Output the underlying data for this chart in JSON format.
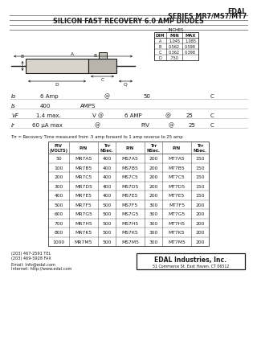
{
  "title_company": "EDAL",
  "title_series": "SERIES MR7/MS7/MT7",
  "title_product": "SILICON FAST RECOVERY 6.0 AMP DIODES",
  "dim_table_label": "INCHES",
  "dim_table_headers": [
    "DIM",
    "MIN",
    "MAX"
  ],
  "dim_table_rows": [
    [
      "A",
      "1.045",
      "1.085"
    ],
    [
      "B",
      "0.562",
      "0.598"
    ],
    [
      "C",
      "0.362",
      "0.398"
    ],
    [
      "D",
      ".750",
      ""
    ]
  ],
  "trr_note": "Trr = Recovery Time measured from .5 amp forward to 1 amp reverse to 25 amp",
  "table_col_headers": [
    "PIV\n(VOLTS)",
    "P/N",
    "Trr\nNSec.",
    "P/N",
    "Trr\nNSec.",
    "P/N",
    "Trr\nNSec."
  ],
  "table_rows": [
    [
      "50",
      "MR7A5",
      "400",
      "MS7A5",
      "200",
      "MT7A5",
      "150"
    ],
    [
      "100",
      "MR7B5",
      "400",
      "MS7B5",
      "200",
      "MT7B5",
      "150"
    ],
    [
      "200",
      "MR7C5",
      "400",
      "MS7C5",
      "200",
      "MT7C5",
      "150"
    ],
    [
      "300",
      "MR7D5",
      "400",
      "MS7D5",
      "200",
      "MT7D5",
      "150"
    ],
    [
      "400",
      "MR7E5",
      "400",
      "MS7E5",
      "200",
      "MT7E5",
      "150"
    ],
    [
      "500",
      "MR7F5",
      "500",
      "MS7F5",
      "300",
      "MT7F5",
      "200"
    ],
    [
      "600",
      "MR7G5",
      "500",
      "MS7G5",
      "300",
      "MT7G5",
      "200"
    ],
    [
      "700",
      "MR7H5",
      "500",
      "MS7H5",
      "300",
      "MT7H5",
      "200"
    ],
    [
      "800",
      "MR7K5",
      "500",
      "MS7K5",
      "300",
      "MT7K5",
      "200"
    ],
    [
      "1000",
      "MR7M5",
      "500",
      "MS7M5",
      "300",
      "MT7M5",
      "200"
    ]
  ],
  "contact_info": [
    "(203) 467-2591 TEL",
    "(203) 469-5928 FAX",
    "Email: Info@edal.com",
    "Internet: http://www.edal.com"
  ],
  "company_footer": "EDAL Industries, Inc.",
  "address_footer": "51 Commerce St. East Haven, CT 06512",
  "bg_color": "#ffffff",
  "text_color": "#1a1a1a",
  "line_color": "#555555",
  "header_line_color": "#888888",
  "table_bg": "#f0ede8"
}
